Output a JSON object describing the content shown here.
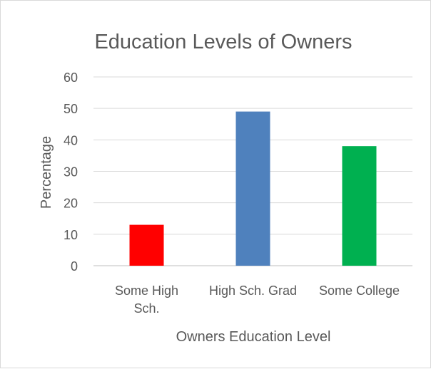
{
  "chart_data": {
    "type": "bar",
    "title": "Education Levels of Owners",
    "xlabel": "Owners Education Level",
    "ylabel": "Percentage",
    "categories": [
      [
        "Some High",
        "Sch."
      ],
      [
        "High Sch. Grad"
      ],
      [
        "Some College"
      ]
    ],
    "values": [
      13,
      49,
      38
    ],
    "bar_colors": [
      "#ff0000",
      "#4f81bd",
      "#00b050"
    ],
    "ylim": [
      0,
      60
    ],
    "yticks": [
      "0",
      "10",
      "20",
      "30",
      "40",
      "50",
      "60"
    ],
    "grid": true,
    "legend": false
  }
}
